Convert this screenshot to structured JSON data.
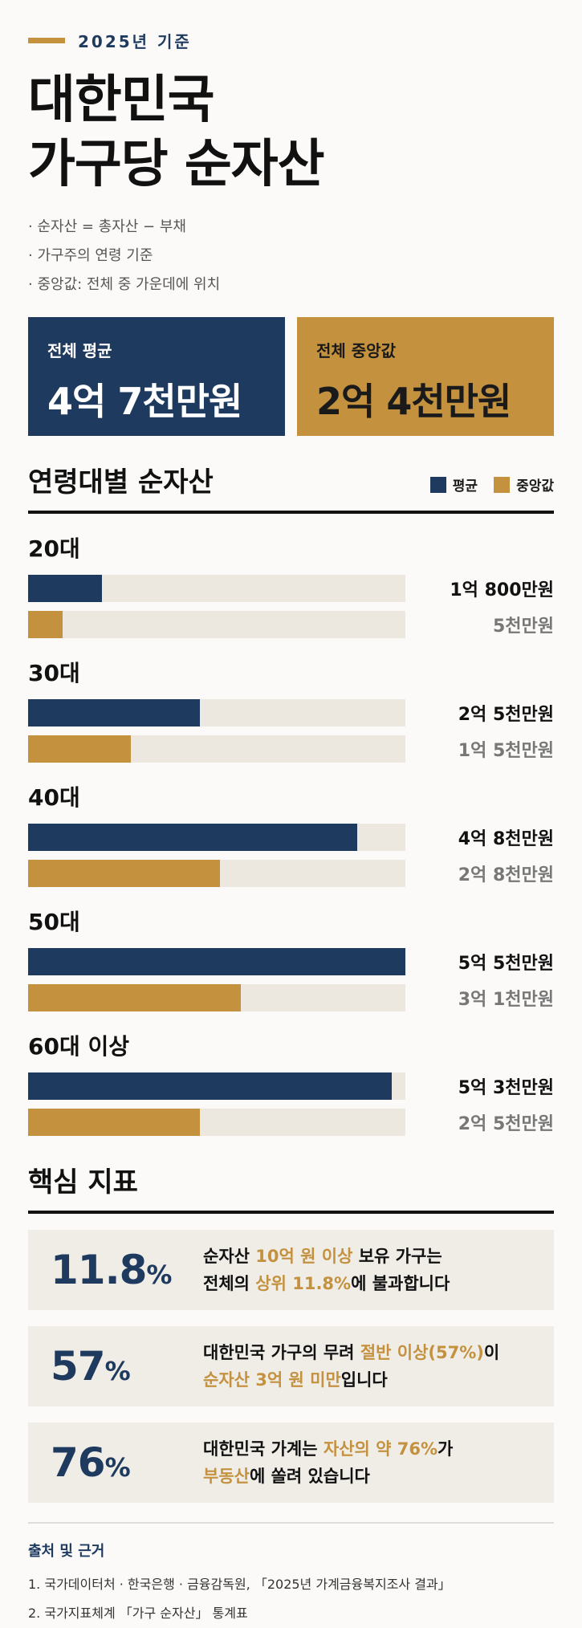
{
  "header": {
    "eyebrow": "2025년 기준",
    "title_line1": "대한민국",
    "title_line2": "가구당 순자산",
    "notes": [
      "순자산 = 총자산 − 부채",
      "가구주의 연령 기준",
      "중앙값: 전체 중 가운데에 위치"
    ]
  },
  "summary": {
    "avg_label": "전체 평균",
    "avg_value": "4억 7천만원",
    "med_label": "전체 중앙값",
    "med_value": "2억 4천만원"
  },
  "section_age": {
    "title": "연령대별 순자산",
    "legend_avg": "평균",
    "legend_med": "중앙값"
  },
  "chart_data": {
    "type": "bar",
    "title": "연령대별 순자산",
    "unit": "만원",
    "categories": [
      "20대",
      "30대",
      "40대",
      "50대",
      "60대 이상"
    ],
    "series": [
      {
        "name": "평균",
        "values": [
          10800,
          25000,
          48000,
          55000,
          53000
        ],
        "labels": [
          "1억 800만원",
          "2억 5천만원",
          "4억 8천만원",
          "5억 5천만원",
          "5억 3천만원"
        ]
      },
      {
        "name": "중앙값",
        "values": [
          5000,
          15000,
          28000,
          31000,
          25000
        ],
        "labels": [
          "5천만원",
          "1억 5천만원",
          "2억 8천만원",
          "3억 1천만원",
          "2억 5천만원"
        ]
      }
    ],
    "xlim": [
      0,
      55000
    ],
    "colors": {
      "평균": "#1f3a5f",
      "중앙값": "#c4913f"
    }
  },
  "section_kpi": {
    "title": "핵심 지표"
  },
  "kpis": [
    {
      "num": "11.8",
      "pct": "%",
      "parts": [
        [
          "순자산 ",
          false
        ],
        [
          "10억 원 이상",
          true
        ],
        [
          " 보유 가구는",
          false
        ],
        [
          "\n전체의 ",
          false
        ],
        [
          "상위 11.8%",
          true
        ],
        [
          "에 불과합니다",
          false
        ]
      ]
    },
    {
      "num": "57",
      "pct": "%",
      "parts": [
        [
          "대한민국 가구의 무려 ",
          false
        ],
        [
          "절반 이상(57%)",
          true
        ],
        [
          "이",
          false
        ],
        [
          "\n",
          false
        ],
        [
          "순자산 3억 원 미만",
          true
        ],
        [
          "입니다",
          false
        ]
      ]
    },
    {
      "num": "76",
      "pct": "%",
      "parts": [
        [
          "대한민국 가계는 ",
          false
        ],
        [
          "자산의 약 76%",
          true
        ],
        [
          "가",
          false
        ],
        [
          "\n",
          false
        ],
        [
          "부동산",
          true
        ],
        [
          "에 쏠려 있습니다",
          false
        ]
      ]
    }
  ],
  "sources": {
    "title": "출처 및 근거",
    "items": [
      "1. 국가데이터처 · 한국은행 · 금융감독원, 「2025년 가계금융복지조사 결과」",
      "2. 국가지표체계 「가구 순자산」 통계표"
    ]
  },
  "colors": {
    "navy": "#1f3a5f",
    "gold": "#c4913f"
  }
}
